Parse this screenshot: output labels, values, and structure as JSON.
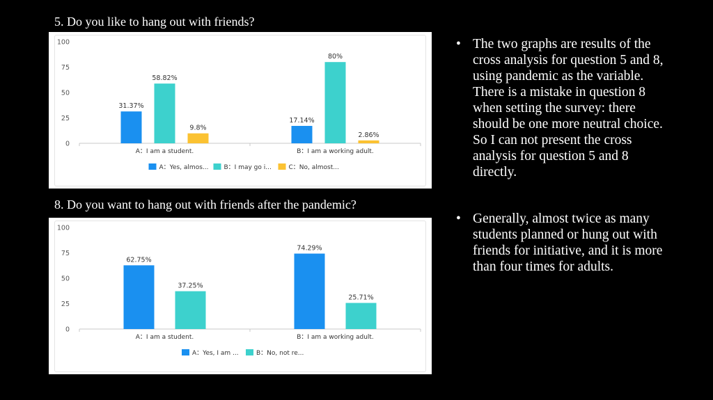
{
  "slide": {
    "q5_title": "5. Do you like to hang out with friends?",
    "q8_title": "8. Do you want to hang out with friends after the pandemic?",
    "bullets": [
      "The two graphs are results of the cross analysis for question 5 and 8, using pandemic as the variable. There is a mistake in question 8 when setting the survey: there should be one more neutral choice. So I can not present the cross analysis for question 5 and 8 directly.",
      "Generally, almost twice as many students planned or hung out with friends for initiative, and it is more than four times for adults."
    ],
    "bullet_glyph": "•"
  },
  "chart_data": [
    {
      "type": "bar",
      "categories": [
        "A：I am a student.",
        "B：I am a working adult."
      ],
      "ylim": [
        0,
        100
      ],
      "yticks": [
        0,
        25,
        50,
        75,
        100
      ],
      "grid": false,
      "legend_position": "bottom",
      "series": [
        {
          "name": "A：Yes, almos...",
          "values": [
            31.37,
            17.14
          ],
          "labels": [
            "31.37%",
            "17.14%"
          ],
          "color": "#1a90f0"
        },
        {
          "name": "B：I may go i...",
          "values": [
            58.82,
            80
          ],
          "labels": [
            "58.82%",
            "80%"
          ],
          "color": "#3dd1cd"
        },
        {
          "name": "C：No, almost...",
          "values": [
            9.8,
            2.86
          ],
          "labels": [
            "9.8%",
            "2.86%"
          ],
          "color": "#fbc232"
        }
      ]
    },
    {
      "type": "bar",
      "categories": [
        "A：I am a student.",
        "B：I am a working adult."
      ],
      "ylim": [
        0,
        100
      ],
      "yticks": [
        0,
        25,
        50,
        75,
        100
      ],
      "grid": false,
      "legend_position": "bottom",
      "series": [
        {
          "name": "A：Yes, I am ...",
          "values": [
            62.75,
            74.29
          ],
          "labels": [
            "62.75%",
            "74.29%"
          ],
          "color": "#1a90f0"
        },
        {
          "name": "B：No, not re...",
          "values": [
            37.25,
            25.71
          ],
          "labels": [
            "37.25%",
            "25.71%"
          ],
          "color": "#3dd1cd"
        }
      ]
    }
  ]
}
